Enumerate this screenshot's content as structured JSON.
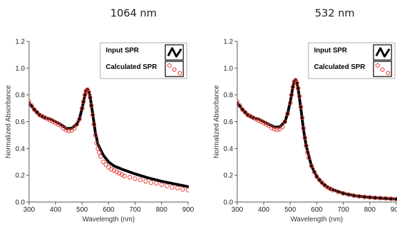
{
  "chart_data": [
    {
      "type": "scatter",
      "title": "1064 nm",
      "xlabel": "Wavelength (nm)",
      "ylabel": "Normalized Absorbance",
      "xlim": [
        300,
        900
      ],
      "ylim": [
        0.0,
        1.2
      ],
      "xticks": [
        "300",
        "400",
        "500",
        "600",
        "700",
        "800",
        "900"
      ],
      "yticks": [
        "0.0",
        "0.2",
        "0.4",
        "0.6",
        "0.8",
        "1.0",
        "1.2"
      ],
      "grid": false,
      "legend_position": "top-right",
      "series": [
        {
          "name": "Input SPR",
          "style": "line",
          "color": "#000000",
          "x": [
            300,
            320,
            340,
            360,
            380,
            400,
            420,
            440,
            460,
            480,
            490,
            500,
            510,
            515,
            520,
            525,
            530,
            540,
            550,
            560,
            580,
            600,
            620,
            650,
            700,
            750,
            800,
            850,
            900
          ],
          "y": [
            0.74,
            0.69,
            0.65,
            0.63,
            0.62,
            0.6,
            0.58,
            0.55,
            0.55,
            0.58,
            0.62,
            0.7,
            0.79,
            0.83,
            0.84,
            0.83,
            0.79,
            0.66,
            0.52,
            0.43,
            0.35,
            0.3,
            0.27,
            0.245,
            0.21,
            0.18,
            0.155,
            0.135,
            0.115
          ]
        },
        {
          "name": "Calculated SPR",
          "style": "markers",
          "color": "#e8403c",
          "x": [
            300,
            310,
            320,
            330,
            340,
            350,
            360,
            370,
            380,
            390,
            400,
            410,
            420,
            430,
            440,
            450,
            460,
            470,
            480,
            490,
            500,
            505,
            510,
            515,
            520,
            525,
            530,
            535,
            540,
            545,
            550,
            555,
            560,
            565,
            570,
            580,
            590,
            600,
            610,
            620,
            630,
            640,
            650,
            660,
            680,
            700,
            720,
            740,
            760,
            780,
            800,
            820,
            840,
            860,
            880,
            900
          ],
          "y": [
            0.75,
            0.72,
            0.69,
            0.67,
            0.65,
            0.64,
            0.63,
            0.62,
            0.61,
            0.6,
            0.59,
            0.58,
            0.57,
            0.55,
            0.54,
            0.53,
            0.535,
            0.55,
            0.58,
            0.62,
            0.7,
            0.75,
            0.8,
            0.83,
            0.84,
            0.82,
            0.78,
            0.72,
            0.65,
            0.58,
            0.5,
            0.44,
            0.4,
            0.37,
            0.34,
            0.3,
            0.28,
            0.26,
            0.245,
            0.235,
            0.225,
            0.215,
            0.205,
            0.195,
            0.185,
            0.175,
            0.165,
            0.155,
            0.145,
            0.14,
            0.13,
            0.12,
            0.11,
            0.105,
            0.095,
            0.09
          ]
        }
      ]
    },
    {
      "type": "scatter",
      "title": "532 nm",
      "xlabel": "Wavelength (nm)",
      "ylabel": "Normalized Absorbance",
      "xlim": [
        300,
        900
      ],
      "ylim": [
        0.0,
        1.2
      ],
      "xticks": [
        "300",
        "400",
        "500",
        "600",
        "700",
        "800",
        "900"
      ],
      "yticks": [
        "0.0",
        "0.2",
        "0.4",
        "0.6",
        "0.8",
        "1.0",
        "1.2"
      ],
      "grid": false,
      "legend_position": "top-right",
      "series": [
        {
          "name": "Input SPR",
          "style": "line",
          "color": "#000000",
          "x": [
            300,
            320,
            340,
            360,
            380,
            400,
            420,
            440,
            460,
            480,
            490,
            500,
            510,
            515,
            520,
            525,
            530,
            540,
            550,
            560,
            580,
            600,
            620,
            650,
            700,
            750,
            800,
            850,
            900
          ],
          "y": [
            0.74,
            0.69,
            0.65,
            0.63,
            0.62,
            0.6,
            0.58,
            0.56,
            0.56,
            0.6,
            0.66,
            0.75,
            0.86,
            0.9,
            0.91,
            0.89,
            0.84,
            0.7,
            0.54,
            0.42,
            0.27,
            0.19,
            0.14,
            0.1,
            0.065,
            0.045,
            0.035,
            0.028,
            0.022
          ]
        },
        {
          "name": "Calculated SPR",
          "style": "markers",
          "color": "#e8403c",
          "x": [
            300,
            310,
            320,
            330,
            340,
            350,
            360,
            370,
            380,
            390,
            400,
            410,
            420,
            430,
            440,
            450,
            460,
            470,
            480,
            490,
            500,
            505,
            510,
            515,
            520,
            525,
            530,
            535,
            540,
            545,
            550,
            555,
            560,
            565,
            570,
            580,
            590,
            600,
            610,
            620,
            630,
            640,
            650,
            660,
            680,
            700,
            720,
            740,
            760,
            780,
            800,
            820,
            840,
            860,
            880,
            900
          ],
          "y": [
            0.75,
            0.72,
            0.69,
            0.67,
            0.65,
            0.64,
            0.63,
            0.62,
            0.61,
            0.6,
            0.59,
            0.58,
            0.57,
            0.555,
            0.545,
            0.54,
            0.545,
            0.56,
            0.6,
            0.66,
            0.74,
            0.8,
            0.86,
            0.9,
            0.91,
            0.89,
            0.85,
            0.79,
            0.71,
            0.63,
            0.55,
            0.48,
            0.42,
            0.37,
            0.33,
            0.27,
            0.225,
            0.19,
            0.165,
            0.145,
            0.125,
            0.11,
            0.1,
            0.09,
            0.075,
            0.065,
            0.055,
            0.048,
            0.042,
            0.038,
            0.035,
            0.032,
            0.03,
            0.028,
            0.025,
            0.022
          ]
        }
      ]
    }
  ]
}
